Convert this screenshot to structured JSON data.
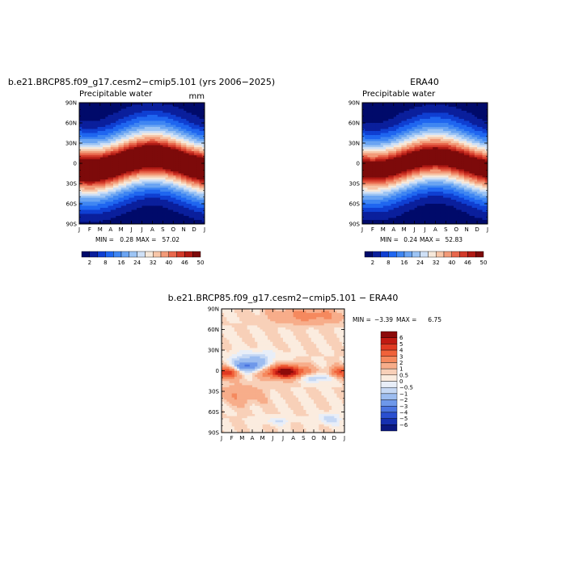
{
  "chart_data": [
    {
      "type": "heatmap",
      "title": "b.e21.BRCP85.f09_g17.cesm2−cmip5.101 (yrs 2006−2025)",
      "subtitle": "Precipitable water",
      "units": "mm",
      "x_ticks": [
        "J",
        "F",
        "M",
        "A",
        "M",
        "J",
        "J",
        "A",
        "S",
        "O",
        "N",
        "D",
        "J"
      ],
      "y_ticks": [
        "90N",
        "60N",
        "30N",
        "0",
        "30S",
        "60S",
        "90S"
      ],
      "xlim": [
        0,
        12
      ],
      "ylim": [
        -90,
        90
      ],
      "min_label": "MIN =",
      "min_value": "0.28",
      "max_label": "MAX =",
      "max_value": "57.02",
      "colorbar": {
        "orientation": "horizontal",
        "labels": [
          "2",
          "8",
          "16",
          "24",
          "32",
          "40",
          "46",
          "50"
        ],
        "colors": [
          "#000a6a",
          "#0a1f9c",
          "#0f3fd2",
          "#1f66f0",
          "#3f86f2",
          "#6aa4f2",
          "#9cc4f4",
          "#cfe0f6",
          "#f6e8da",
          "#f7c6a8",
          "#f29a78",
          "#e8674c",
          "#d23a2a",
          "#b01a14",
          "#7d0a0a"
        ]
      },
      "field": {
        "peak": 57,
        "lat_shift_peak_month": 7,
        "lat_shift_deg": 10,
        "width_deg": 28
      }
    },
    {
      "type": "heatmap",
      "title": "ERA40",
      "subtitle": "Precipitable water",
      "x_ticks": [
        "J",
        "F",
        "M",
        "A",
        "M",
        "J",
        "J",
        "A",
        "S",
        "O",
        "N",
        "D",
        "J"
      ],
      "y_ticks": [
        "90N",
        "60N",
        "30N",
        "0",
        "30S",
        "60S",
        "90S"
      ],
      "xlim": [
        0,
        12
      ],
      "ylim": [
        -90,
        90
      ],
      "min_label": "MIN =",
      "min_value": "0.24",
      "max_label": "MAX =",
      "max_value": "52.83",
      "colorbar": {
        "orientation": "horizontal",
        "labels": [
          "2",
          "8",
          "16",
          "24",
          "32",
          "40",
          "46",
          "50"
        ],
        "colors": [
          "#000a6a",
          "#0a1f9c",
          "#0f3fd2",
          "#1f66f0",
          "#3f86f2",
          "#6aa4f2",
          "#9cc4f4",
          "#cfe0f6",
          "#f6e8da",
          "#f7c6a8",
          "#f29a78",
          "#e8674c",
          "#d23a2a",
          "#b01a14",
          "#7d0a0a"
        ]
      },
      "field": {
        "peak": 53,
        "lat_shift_peak_month": 7,
        "lat_shift_deg": 10,
        "width_deg": 27
      }
    },
    {
      "type": "heatmap",
      "title": "b.e21.BRCP85.f09_g17.cesm2−cmip5.101 − ERA40",
      "x_ticks": [
        "J",
        "F",
        "M",
        "A",
        "M",
        "J",
        "J",
        "A",
        "S",
        "O",
        "N",
        "D",
        "J"
      ],
      "y_ticks": [
        "90N",
        "60N",
        "30N",
        "0",
        "30S",
        "60S",
        "90S"
      ],
      "xlim": [
        0,
        12
      ],
      "ylim": [
        -90,
        90
      ],
      "min_label": "MIN =",
      "min_value": "−3.39",
      "max_label": "MAX =",
      "max_value": "6.75",
      "colorbar": {
        "orientation": "vertical",
        "labels": [
          "6",
          "5",
          "4",
          "3",
          "2",
          "1",
          "0.5",
          "0",
          "−0.5",
          "−1",
          "−2",
          "−3",
          "−4",
          "−5",
          "−6"
        ],
        "colors": [
          "#8c0a0a",
          "#c01a12",
          "#e03a22",
          "#f0623a",
          "#f5895e",
          "#f7ad8a",
          "#f8d0b8",
          "#fbecdf",
          "#e8eef8",
          "#c6d8f4",
          "#9dbdf0",
          "#6e98ea",
          "#4a74e0",
          "#2a4fd0",
          "#1530b0",
          "#0a1880"
        ]
      },
      "anomalies": [
        {
          "month": 6.3,
          "lat": -2,
          "amp": 6.5,
          "sx": 1.4,
          "sy": 7
        },
        {
          "month": 0.5,
          "lat": -3,
          "amp": 4.2,
          "sx": 0.9,
          "sy": 6
        },
        {
          "month": 11.6,
          "lat": -3,
          "amp": 3.5,
          "sx": 0.8,
          "sy": 6
        },
        {
          "month": 2.6,
          "lat": 6,
          "amp": -3.4,
          "sx": 1.1,
          "sy": 6
        },
        {
          "month": 9.0,
          "lat": -10,
          "amp": -1.8,
          "sx": 1.6,
          "sy": 5
        },
        {
          "month": 3.2,
          "lat": 18,
          "amp": -1.4,
          "sx": 1.6,
          "sy": 8
        },
        {
          "month": 1.8,
          "lat": -35,
          "amp": 1.4,
          "sx": 1.5,
          "sy": 10
        },
        {
          "month": 8.5,
          "lat": 80,
          "amp": 2.0,
          "sx": 2.5,
          "sy": 8
        },
        {
          "month": 10.5,
          "lat": -70,
          "amp": -1.4,
          "sx": 0.8,
          "sy": 6
        },
        {
          "month": 5.5,
          "lat": -73,
          "amp": -1.0,
          "sx": 0.9,
          "sy": 4
        }
      ]
    }
  ]
}
